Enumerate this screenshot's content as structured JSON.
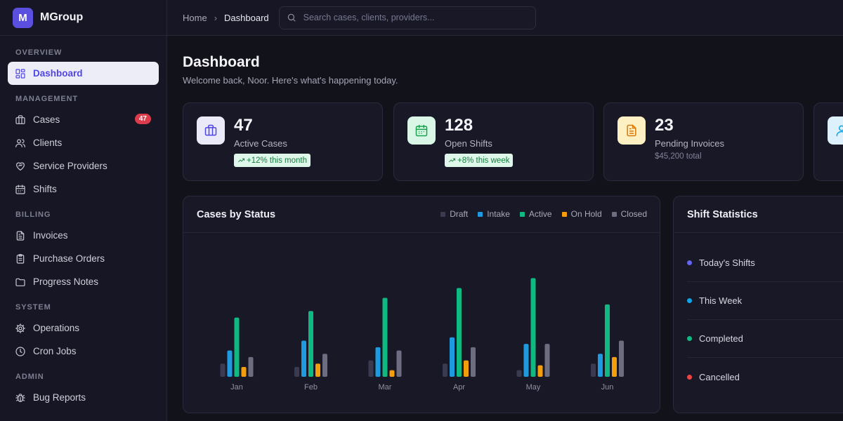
{
  "brand": {
    "logo_letter": "M",
    "name": "MGroup"
  },
  "sidebar": {
    "sections": [
      {
        "title": "OVERVIEW",
        "items": [
          {
            "label": "Dashboard",
            "icon": "grid-icon",
            "active": true
          }
        ]
      },
      {
        "title": "MANAGEMENT",
        "items": [
          {
            "label": "Cases",
            "icon": "briefcase-icon",
            "badge": "47"
          },
          {
            "label": "Clients",
            "icon": "users-icon"
          },
          {
            "label": "Service Providers",
            "icon": "heart-handshake-icon"
          },
          {
            "label": "Shifts",
            "icon": "calendar-icon"
          }
        ]
      },
      {
        "title": "BILLING",
        "items": [
          {
            "label": "Invoices",
            "icon": "file-text-icon"
          },
          {
            "label": "Purchase Orders",
            "icon": "clipboard-icon"
          },
          {
            "label": "Progress Notes",
            "icon": "folder-icon"
          }
        ]
      },
      {
        "title": "SYSTEM",
        "items": [
          {
            "label": "Operations",
            "icon": "gear-icon"
          },
          {
            "label": "Cron Jobs",
            "icon": "clock-icon"
          }
        ]
      },
      {
        "title": "ADMIN",
        "items": [
          {
            "label": "Bug Reports",
            "icon": "bug-icon"
          }
        ]
      }
    ]
  },
  "topbar": {
    "breadcrumb": [
      "Home",
      "Dashboard"
    ],
    "search_placeholder": "Search cases, clients, providers..."
  },
  "header": {
    "title": "Dashboard",
    "subtitle": "Welcome back, Noor. Here's what's happening today."
  },
  "stats": [
    {
      "value": "47",
      "label": "Active Cases",
      "trend": "+12% this month",
      "icon": "briefcase-icon",
      "bg": "#ebeaf9",
      "fg": "#4f46e5"
    },
    {
      "value": "128",
      "label": "Open Shifts",
      "trend": "+8% this week",
      "icon": "calendar-icon",
      "bg": "#d9f6e6",
      "fg": "#16a34a"
    },
    {
      "value": "23",
      "label": "Pending Invoices",
      "sub": "$45,200 total",
      "icon": "file-text-icon",
      "bg": "#fdf0c2",
      "fg": "#d97706"
    },
    {
      "value": "",
      "label": "",
      "icon": "user-icon",
      "bg": "#dcf1fb",
      "fg": "#0ea5e9"
    }
  ],
  "cases_panel": {
    "title": "Cases by Status"
  },
  "chart_data": {
    "type": "bar",
    "categories": [
      "Jan",
      "Feb",
      "Mar",
      "Apr",
      "May",
      "Jun"
    ],
    "series": [
      {
        "name": "Draft",
        "color": "#3a3b50",
        "values": [
          4,
          3,
          5,
          4,
          2,
          4
        ]
      },
      {
        "name": "Intake",
        "color": "#1e9be0",
        "values": [
          8,
          11,
          9,
          12,
          10,
          7
        ]
      },
      {
        "name": "Active",
        "color": "#10b981",
        "values": [
          18,
          20,
          24,
          27,
          30,
          22
        ]
      },
      {
        "name": "On Hold",
        "color": "#f59e0b",
        "values": [
          3,
          4,
          2,
          5,
          3.5,
          6
        ]
      },
      {
        "name": "Closed",
        "color": "#6c6d80",
        "values": [
          6,
          7,
          8,
          9,
          10,
          11
        ]
      }
    ],
    "ylim": [
      0,
      32
    ],
    "grid": false,
    "legend": "top-right"
  },
  "shift_panel": {
    "title": "Shift Statistics",
    "rows": [
      {
        "label": "Today's Shifts",
        "color": "#6366f1"
      },
      {
        "label": "This Week",
        "color": "#0ea5e9"
      },
      {
        "label": "Completed",
        "color": "#10b981"
      },
      {
        "label": "Cancelled",
        "color": "#ef4444"
      }
    ]
  }
}
